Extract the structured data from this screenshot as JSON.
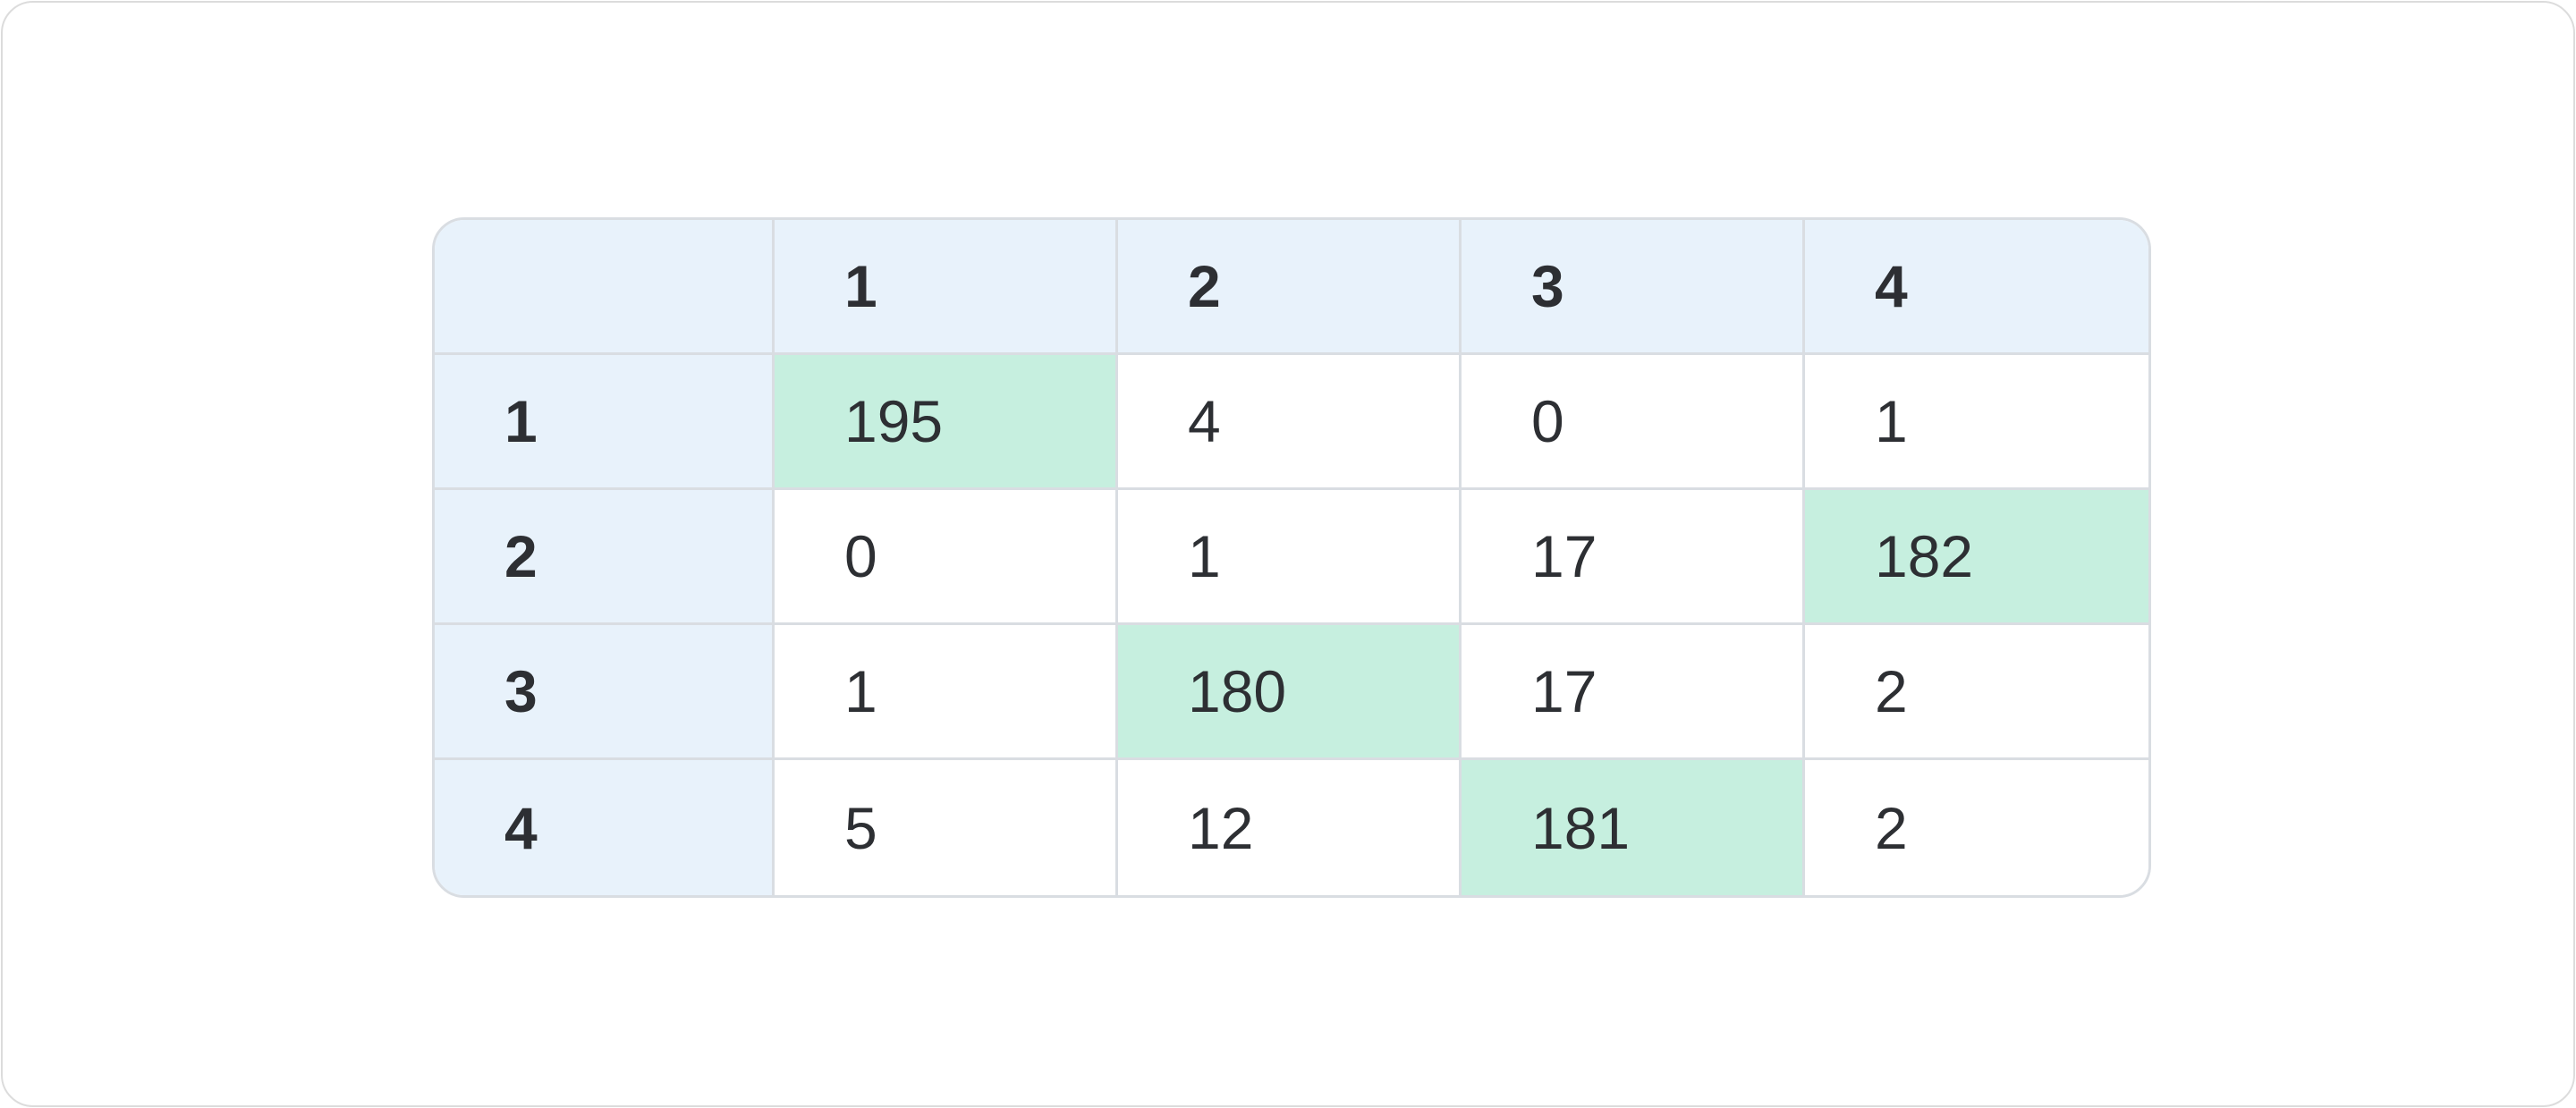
{
  "table": {
    "columns": [
      "1",
      "2",
      "3",
      "4"
    ],
    "rows": [
      {
        "label": "1",
        "cells": [
          195,
          4,
          0,
          1
        ],
        "highlight": 0
      },
      {
        "label": "2",
        "cells": [
          0,
          1,
          17,
          182
        ],
        "highlight": 3
      },
      {
        "label": "3",
        "cells": [
          1,
          180,
          17,
          2
        ],
        "highlight": 1
      },
      {
        "label": "4",
        "cells": [
          5,
          12,
          181,
          2
        ],
        "highlight": 2
      }
    ],
    "header_color": "#e8f2fb",
    "highlight_color": "#c6efdf"
  }
}
